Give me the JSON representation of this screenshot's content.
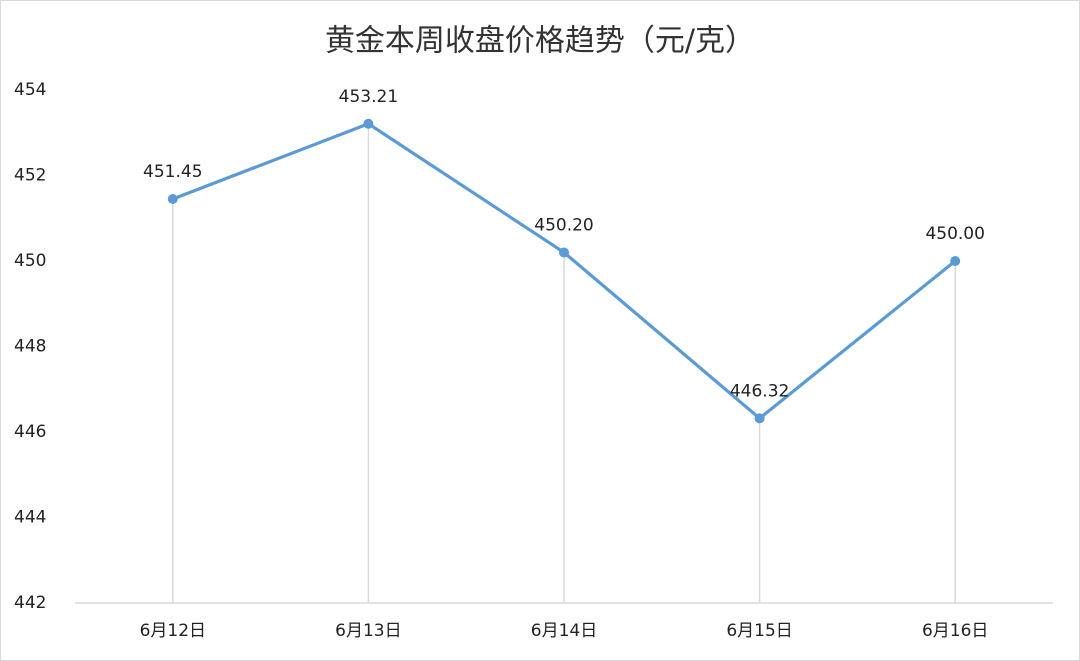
{
  "chart_data": {
    "type": "line",
    "title": "黄金本周收盘价格趋势（元/克）",
    "categories": [
      "6月12日",
      "6月13日",
      "6月14日",
      "6月15日",
      "6月16日"
    ],
    "values": [
      451.45,
      453.21,
      450.2,
      446.32,
      450
    ],
    "value_labels": [
      "451.45",
      "453.21",
      "450.20",
      "446.32",
      "450.00"
    ],
    "color": "#5b9bd5",
    "drop_lines": true,
    "ylim": [
      442,
      454
    ],
    "yticks": [
      442,
      444,
      446,
      448,
      450,
      452,
      454
    ]
  }
}
